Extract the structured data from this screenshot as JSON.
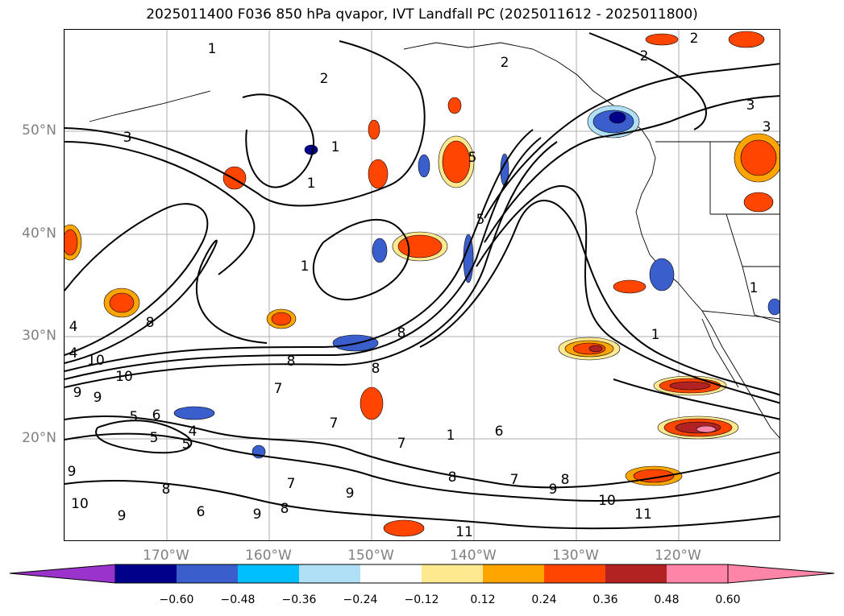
{
  "title": "2025011400 F036 850 hPa qvapor, IVT Landfall PC (2025011612 - 2025011800)",
  "map": {
    "lat_ticks": [
      "50°N",
      "40°N",
      "30°N",
      "20°N"
    ],
    "lon_ticks": [
      "170°W",
      "160°W",
      "150°W",
      "140°W",
      "130°W",
      "120°W"
    ],
    "contour_labels": [
      "1",
      "1",
      "1",
      "1",
      "1",
      "1",
      "1",
      "2",
      "2",
      "2",
      "2",
      "3",
      "3",
      "3",
      "4",
      "4",
      "4",
      "5",
      "5",
      "5",
      "5",
      "5",
      "6",
      "6",
      "6",
      "7",
      "7",
      "7",
      "7",
      "7",
      "8",
      "8",
      "8",
      "8",
      "8",
      "8",
      "8",
      "8",
      "9",
      "9",
      "9",
      "9",
      "9",
      "9",
      "9",
      "10",
      "10",
      "10",
      "10",
      "11",
      "11"
    ]
  },
  "colorbar": {
    "colors": {
      "below": "#9933CC",
      "bins": [
        "#00008B",
        "#3A5FCD",
        "#00BFFF",
        "#B0E0F6",
        "#FFFFFF",
        "#FFE98F",
        "#FFA500",
        "#FF4500",
        "#B22222",
        "#FF85A8"
      ]
    },
    "ticks": [
      "−0.60",
      "−0.48",
      "−0.36",
      "−0.24",
      "−0.12",
      "0.12",
      "0.24",
      "0.36",
      "0.48",
      "0.60"
    ],
    "extend": "both"
  }
}
